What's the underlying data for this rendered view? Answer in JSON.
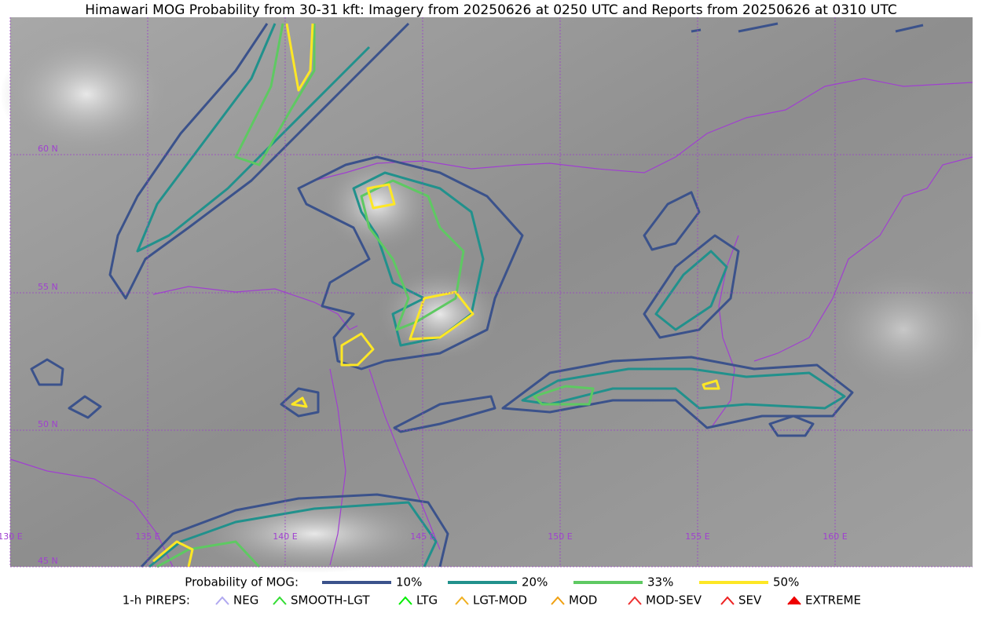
{
  "title": "Himawari MOG Probability from 30-31 kft: Imagery from 20250626 at 0250 UTC and Reports from 20250626 at 0310 UTC",
  "map": {
    "lat_labels": [
      "60 N",
      "55 N",
      "50 N",
      "45 N"
    ],
    "lon_labels": [
      "130 E",
      "135 E",
      "140 E",
      "145 E",
      "150 E",
      "155 E",
      "160 E"
    ]
  },
  "legend": {
    "probability": {
      "label": "Probability of MOG:",
      "items": [
        {
          "label": "10%",
          "color": "#3b528b"
        },
        {
          "label": "20%",
          "color": "#21918c"
        },
        {
          "label": "33%",
          "color": "#5ec962"
        },
        {
          "label": "50%",
          "color": "#fde725"
        }
      ]
    },
    "pireps": {
      "label": "1-h PIREPS:",
      "items": [
        {
          "label": "NEG",
          "color": "#b0a8f0"
        },
        {
          "label": "SMOOTH-LGT",
          "color": "#33dd33"
        },
        {
          "label": "LTG",
          "color": "#00ee00"
        },
        {
          "label": "LGT-MOD",
          "color": "#f0b020"
        },
        {
          "label": "MOD",
          "color": "#f0a010"
        },
        {
          "label": "MOD-SEV",
          "color": "#ee3030"
        },
        {
          "label": "SEV",
          "color": "#ee2020"
        },
        {
          "label": "EXTREME",
          "color": "#ee0000"
        }
      ]
    }
  }
}
